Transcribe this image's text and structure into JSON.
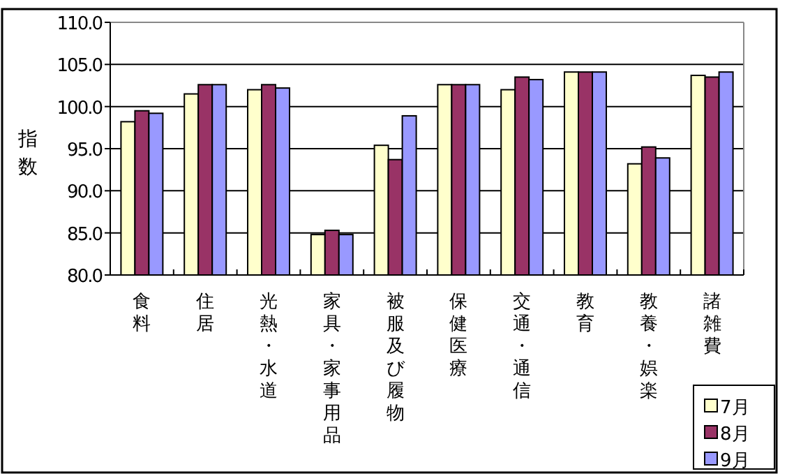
{
  "chart_data": {
    "type": "bar",
    "ylabel": "指数",
    "categories": [
      "食料",
      "住居",
      "光熱・水道",
      "家具・家事用品",
      "被服及び履物",
      "保健医療",
      "交通・通信",
      "教育",
      "教養・娯楽",
      "諸雑費"
    ],
    "series": [
      {
        "name": "7月",
        "color": "#ffffcc",
        "values": [
          98.2,
          101.5,
          102.0,
          84.8,
          95.4,
          102.6,
          102.0,
          104.1,
          93.2,
          103.7
        ]
      },
      {
        "name": "8月",
        "color": "#993366",
        "values": [
          99.5,
          102.6,
          102.6,
          85.3,
          93.7,
          102.6,
          103.5,
          104.1,
          95.2,
          103.5
        ]
      },
      {
        "name": "9月",
        "color": "#9999ff",
        "values": [
          99.2,
          102.6,
          102.2,
          84.8,
          98.9,
          102.6,
          103.2,
          104.1,
          93.9,
          104.1
        ]
      }
    ],
    "ylim": [
      80,
      110
    ],
    "yticks": [
      {
        "value": 80,
        "label": "80.0"
      },
      {
        "value": 85,
        "label": "85.0"
      },
      {
        "value": 90,
        "label": "90.0"
      },
      {
        "value": 95,
        "label": "95.0"
      },
      {
        "value": 100,
        "label": "100.0"
      },
      {
        "value": 105,
        "label": "105.0"
      },
      {
        "value": 110,
        "label": "110.0"
      }
    ],
    "grid": "y",
    "legend": "bottom right"
  }
}
